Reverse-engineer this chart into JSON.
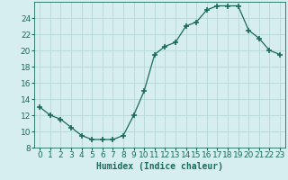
{
  "x": [
    0,
    1,
    2,
    3,
    4,
    5,
    6,
    7,
    8,
    9,
    10,
    11,
    12,
    13,
    14,
    15,
    16,
    17,
    18,
    19,
    20,
    21,
    22,
    23
  ],
  "y": [
    13,
    12,
    11.5,
    10.5,
    9.5,
    9,
    9,
    9,
    9.5,
    12,
    15,
    19.5,
    20.5,
    21,
    23,
    23.5,
    25,
    25.5,
    25.5,
    25.5,
    22.5,
    21.5,
    20,
    19.5
  ],
  "line_color": "#1a6b5a",
  "marker": "+",
  "marker_size": 4,
  "marker_linewidth": 1.2,
  "bg_color": "#d6eeed",
  "grid_color": "#b8d8d5",
  "tick_label_color": "#1a6b5a",
  "xlabel": "Humidex (Indice chaleur)",
  "ylim": [
    8,
    26
  ],
  "yticks": [
    8,
    10,
    12,
    14,
    16,
    18,
    20,
    22,
    24
  ],
  "xticks": [
    0,
    1,
    2,
    3,
    4,
    5,
    6,
    7,
    8,
    9,
    10,
    11,
    12,
    13,
    14,
    15,
    16,
    17,
    18,
    19,
    20,
    21,
    22,
    23
  ],
  "xlabel_fontsize": 7,
  "tick_fontsize": 6.5
}
